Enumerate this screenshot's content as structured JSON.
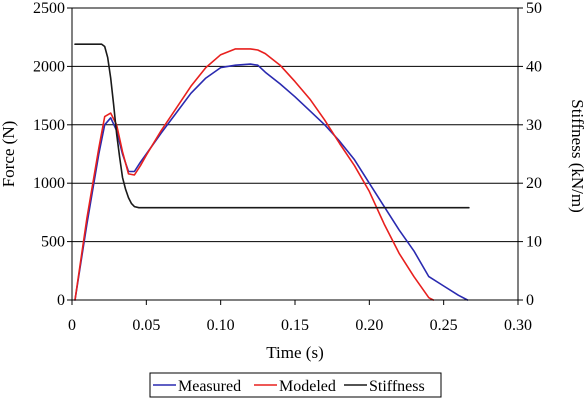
{
  "chart_data": {
    "type": "line",
    "title": "",
    "xlabel": "Time (s)",
    "ylabel_left": "Force (N)",
    "ylabel_right": "Stiffness (kN/m)",
    "xlim": [
      0,
      0.3
    ],
    "ylim_left": [
      0,
      2500
    ],
    "ylim_right": [
      0,
      50
    ],
    "x_ticks": [
      "0",
      "0.05",
      "0.10",
      "0.15",
      "0.20",
      "0.25",
      "0.30"
    ],
    "y_left_ticks": [
      "0",
      "500",
      "1000",
      "1500",
      "2000",
      "2500"
    ],
    "y_right_ticks": [
      "0",
      "10",
      "20",
      "30",
      "40",
      "50"
    ],
    "grid": "horizontal",
    "legend_position": "bottom",
    "series": [
      {
        "name": "Measured",
        "color": "#2a2ab0",
        "axis": "left",
        "x": [
          0.002,
          0.01,
          0.018,
          0.022,
          0.026,
          0.03,
          0.034,
          0.038,
          0.042,
          0.046,
          0.05,
          0.06,
          0.07,
          0.08,
          0.09,
          0.1,
          0.11,
          0.12,
          0.125,
          0.13,
          0.14,
          0.15,
          0.16,
          0.17,
          0.18,
          0.19,
          0.2,
          0.21,
          0.22,
          0.23,
          0.24,
          0.25,
          0.26,
          0.266
        ],
        "y": [
          0,
          650,
          1250,
          1500,
          1560,
          1450,
          1250,
          1100,
          1100,
          1180,
          1250,
          1430,
          1600,
          1770,
          1900,
          1990,
          2010,
          2020,
          2010,
          1950,
          1850,
          1740,
          1620,
          1500,
          1360,
          1200,
          1000,
          800,
          600,
          420,
          200,
          120,
          40,
          0
        ]
      },
      {
        "name": "Modeled",
        "color": "#e8201e",
        "axis": "left",
        "x": [
          0.002,
          0.01,
          0.018,
          0.022,
          0.026,
          0.03,
          0.034,
          0.038,
          0.042,
          0.046,
          0.05,
          0.06,
          0.07,
          0.08,
          0.09,
          0.1,
          0.11,
          0.12,
          0.125,
          0.13,
          0.14,
          0.15,
          0.16,
          0.17,
          0.18,
          0.19,
          0.2,
          0.21,
          0.22,
          0.23,
          0.24,
          0.243
        ],
        "y": [
          0,
          700,
          1300,
          1570,
          1600,
          1500,
          1270,
          1080,
          1070,
          1150,
          1240,
          1450,
          1640,
          1830,
          1990,
          2100,
          2150,
          2150,
          2140,
          2110,
          2010,
          1870,
          1720,
          1540,
          1340,
          1150,
          930,
          650,
          400,
          200,
          20,
          0
        ]
      },
      {
        "name": "Stiffness",
        "color": "#1a1a1a",
        "axis": "right",
        "x": [
          0.002,
          0.02,
          0.022,
          0.024,
          0.026,
          0.028,
          0.03,
          0.032,
          0.034,
          0.036,
          0.038,
          0.04,
          0.042,
          0.045,
          0.06,
          0.1,
          0.15,
          0.2,
          0.25,
          0.267
        ],
        "y": [
          43.8,
          43.8,
          43.4,
          41.5,
          38.0,
          33.5,
          28.5,
          24.5,
          21.0,
          19.0,
          17.5,
          16.5,
          16.0,
          15.8,
          15.8,
          15.8,
          15.8,
          15.8,
          15.8,
          15.8
        ]
      }
    ]
  }
}
